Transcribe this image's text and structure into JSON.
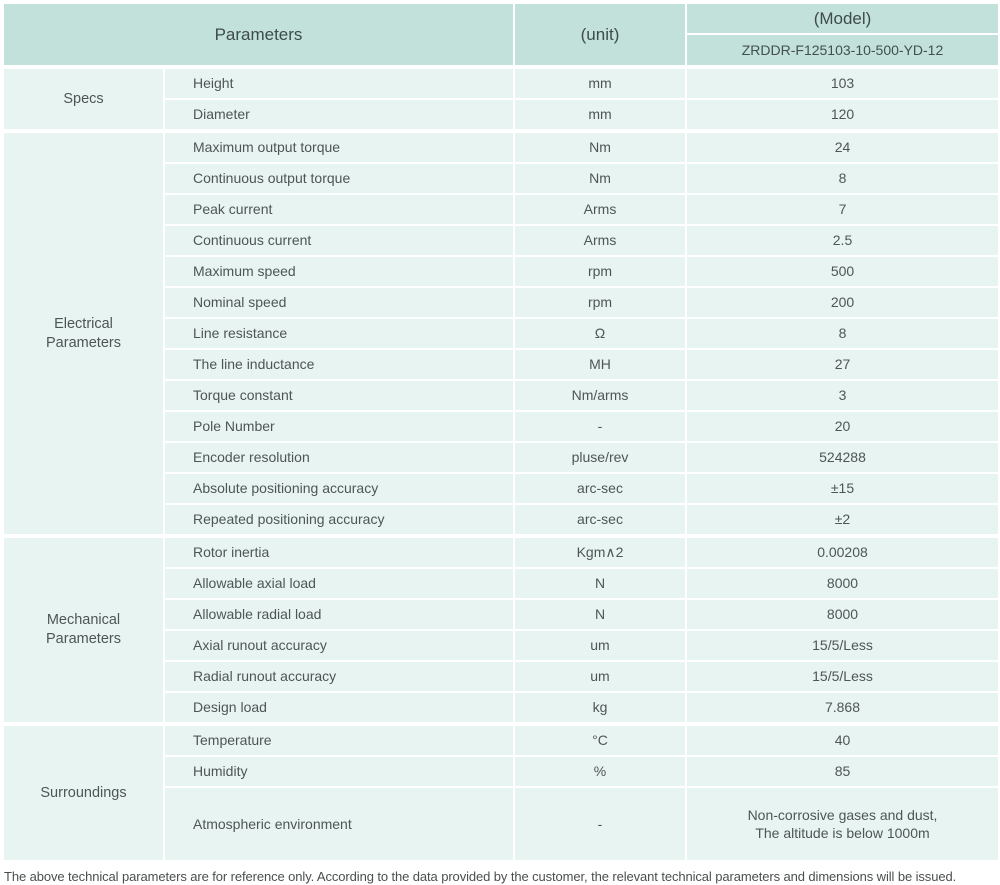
{
  "table": {
    "header": {
      "parameters_label": "Parameters",
      "unit_label": "(unit)",
      "model_label": "(Model)",
      "model_number": "ZRDDR-F125103-10-500-YD-12"
    },
    "sections": [
      {
        "group": "Specs",
        "rows": [
          {
            "name": "Height",
            "unit": "mm",
            "value": "103"
          },
          {
            "name": "Diameter",
            "unit": "mm",
            "value": "120"
          }
        ]
      },
      {
        "group": "Electrical\nParameters",
        "rows": [
          {
            "name": "Maximum output torque",
            "unit": "Nm",
            "value": "24"
          },
          {
            "name": "Continuous output torque",
            "unit": "Nm",
            "value": "8"
          },
          {
            "name": "Peak current",
            "unit": "Arms",
            "value": "7"
          },
          {
            "name": "Continuous current",
            "unit": "Arms",
            "value": "2.5"
          },
          {
            "name": "Maximum speed",
            "unit": "rpm",
            "value": "500"
          },
          {
            "name": "Nominal speed",
            "unit": "rpm",
            "value": "200"
          },
          {
            "name": "Line resistance",
            "unit": "Ω",
            "value": "8"
          },
          {
            "name": "The line inductance",
            "unit": "MH",
            "value": "27"
          },
          {
            "name": "Torque constant",
            "unit": "Nm/arms",
            "value": "3"
          },
          {
            "name": "Pole Number",
            "unit": "-",
            "value": "20"
          },
          {
            "name": "Encoder resolution",
            "unit": "pluse/rev",
            "value": "524288"
          },
          {
            "name": "Absolute positioning accuracy",
            "unit": "arc-sec",
            "value": "±15"
          },
          {
            "name": "Repeated positioning accuracy",
            "unit": "arc-sec",
            "value": "±2"
          }
        ]
      },
      {
        "group": "Mechanical\nParameters",
        "rows": [
          {
            "name": "Rotor inertia",
            "unit": "Kgm∧2",
            "value": "0.00208"
          },
          {
            "name": "Allowable axial load",
            "unit": "N",
            "value": "8000"
          },
          {
            "name": "Allowable radial load",
            "unit": "N",
            "value": "8000"
          },
          {
            "name": "Axial runout accuracy",
            "unit": "um",
            "value": "15/5/Less"
          },
          {
            "name": "Radial runout accuracy",
            "unit": "um",
            "value": "15/5/Less"
          },
          {
            "name": "Design load",
            "unit": "kg",
            "value": "7.868"
          }
        ]
      },
      {
        "group": "Surroundings",
        "rows": [
          {
            "name": "Temperature",
            "unit": "°C",
            "value": "40"
          },
          {
            "name": "Humidity",
            "unit": "%",
            "value": "85"
          },
          {
            "name": "Atmospheric environment",
            "unit": "-",
            "value": "Non-corrosive gases and dust,\nThe altitude is below 1000m"
          }
        ]
      }
    ]
  },
  "footer": {
    "note": "The above technical parameters are for reference only. According to the data provided by the customer, the relevant technical parameters and dimensions will be issued."
  },
  "colors": {
    "header_bg": "#c2e1da",
    "cell_bg": "#e8f4f1",
    "text": "#4e5655"
  }
}
